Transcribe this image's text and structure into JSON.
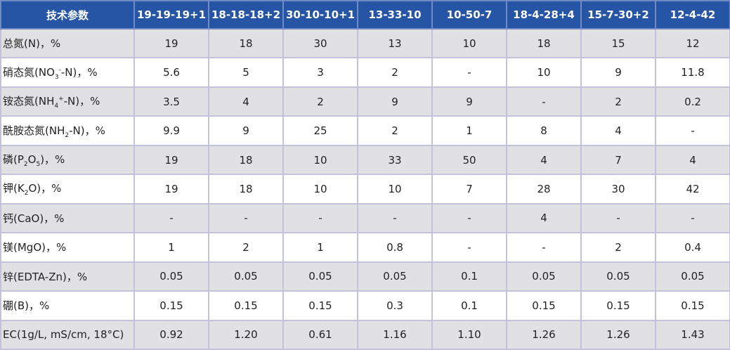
{
  "table": {
    "header": [
      "技术参数",
      "19-19-19+1",
      "18-18-18+2",
      "30-10-10+1",
      "13-33-10",
      "10-50-7",
      "18-4-28+4",
      "15-7-30+2",
      "12-4-42"
    ],
    "rows": [
      {
        "label": [
          {
            "text": "总氮(N)，%"
          }
        ],
        "values": [
          "19",
          "18",
          "30",
          "13",
          "10",
          "18",
          "15",
          "12"
        ]
      },
      {
        "label": [
          {
            "text": "硝态氮(NO"
          },
          {
            "text": "3",
            "style": "sub"
          },
          {
            "text": "-",
            "style": "sup"
          },
          {
            "text": "-N)，%"
          }
        ],
        "values": [
          "5.6",
          "5",
          "3",
          "2",
          "-",
          "10",
          "9",
          "11.8"
        ]
      },
      {
        "label": [
          {
            "text": "铵态氮(NH"
          },
          {
            "text": "4",
            "style": "sub"
          },
          {
            "text": "+",
            "style": "sup"
          },
          {
            "text": "-N)，%"
          }
        ],
        "values": [
          "3.5",
          "4",
          "2",
          "9",
          "9",
          "-",
          "2",
          "0.2"
        ]
      },
      {
        "label": [
          {
            "text": "酰胺态氮(NH"
          },
          {
            "text": "2",
            "style": "sub"
          },
          {
            "text": "-N)，%"
          }
        ],
        "values": [
          "9.9",
          "9",
          "25",
          "2",
          "1",
          "8",
          "4",
          "-"
        ]
      },
      {
        "label": [
          {
            "text": "磷(P"
          },
          {
            "text": "2",
            "style": "sub"
          },
          {
            "text": "O"
          },
          {
            "text": "5",
            "style": "sub"
          },
          {
            "text": ")，%"
          }
        ],
        "values": [
          "19",
          "18",
          "10",
          "33",
          "50",
          "4",
          "7",
          "4"
        ]
      },
      {
        "label": [
          {
            "text": "钾(K"
          },
          {
            "text": "2",
            "style": "sub"
          },
          {
            "text": "O)，%"
          }
        ],
        "values": [
          "19",
          "18",
          "10",
          "10",
          "7",
          "28",
          "30",
          "42"
        ]
      },
      {
        "label": [
          {
            "text": "钙(CaO)，%"
          }
        ],
        "values": [
          "-",
          "-",
          "-",
          "-",
          "-",
          "4",
          "-",
          "-"
        ]
      },
      {
        "label": [
          {
            "text": "镁(MgO)，%"
          }
        ],
        "values": [
          "1",
          "2",
          "1",
          "0.8",
          "-",
          "-",
          "2",
          "0.4"
        ]
      },
      {
        "label": [
          {
            "text": "锌(EDTA-Zn)，%"
          }
        ],
        "values": [
          "0.05",
          "0.05",
          "0.05",
          "0.05",
          "0.1",
          "0.05",
          "0.05",
          "0.05"
        ]
      },
      {
        "label": [
          {
            "text": "硼(B)，%"
          }
        ],
        "values": [
          "0.15",
          "0.15",
          "0.15",
          "0.3",
          "0.1",
          "0.15",
          "0.15",
          "0.15"
        ]
      },
      {
        "label": [
          {
            "text": "EC(1g/L, mS/cm, 18°C)"
          }
        ],
        "values": [
          "0.92",
          "1.20",
          "0.61",
          "1.16",
          "1.10",
          "1.26",
          "1.26",
          "1.43"
        ]
      }
    ]
  }
}
